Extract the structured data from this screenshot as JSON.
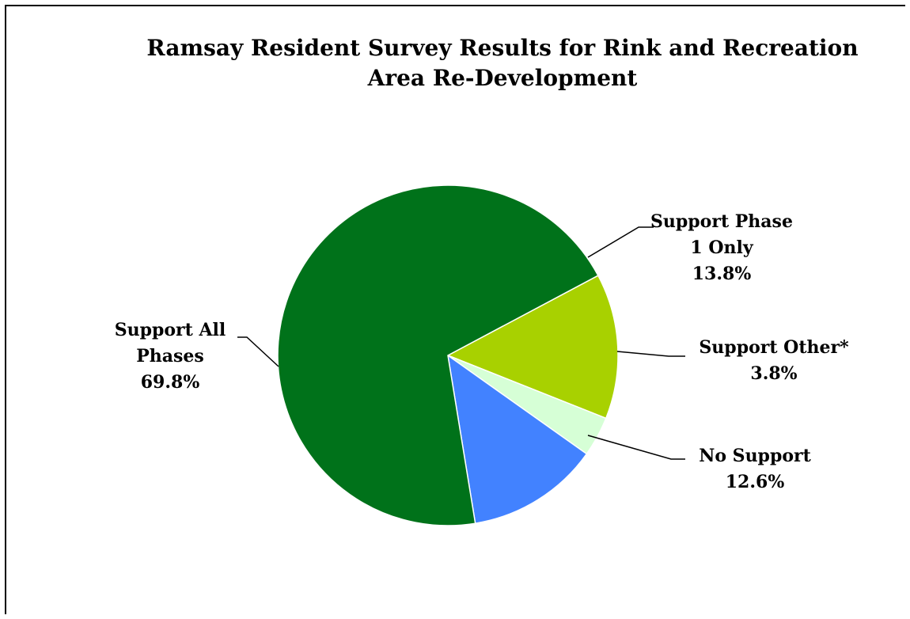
{
  "chart_data": {
    "type": "pie",
    "title": [
      "Ramsay Resident Survey Results for Rink and Recreation",
      "Area Re-Development"
    ],
    "slices": [
      {
        "label": [
          "Support Phase",
          "1 Only"
        ],
        "value": 13.8,
        "value_text": "13.8%",
        "color": "#a8d100"
      },
      {
        "label": [
          "Support Other*"
        ],
        "value": 3.8,
        "value_text": "3.8%",
        "color": "#d6ffd6"
      },
      {
        "label": [
          "No Support"
        ],
        "value": 12.6,
        "value_text": "12.6%",
        "color": "#4282ff"
      },
      {
        "label": [
          "Support All",
          "Phases"
        ],
        "value": 69.8,
        "value_text": "69.8%",
        "color": "#00721a"
      }
    ]
  }
}
